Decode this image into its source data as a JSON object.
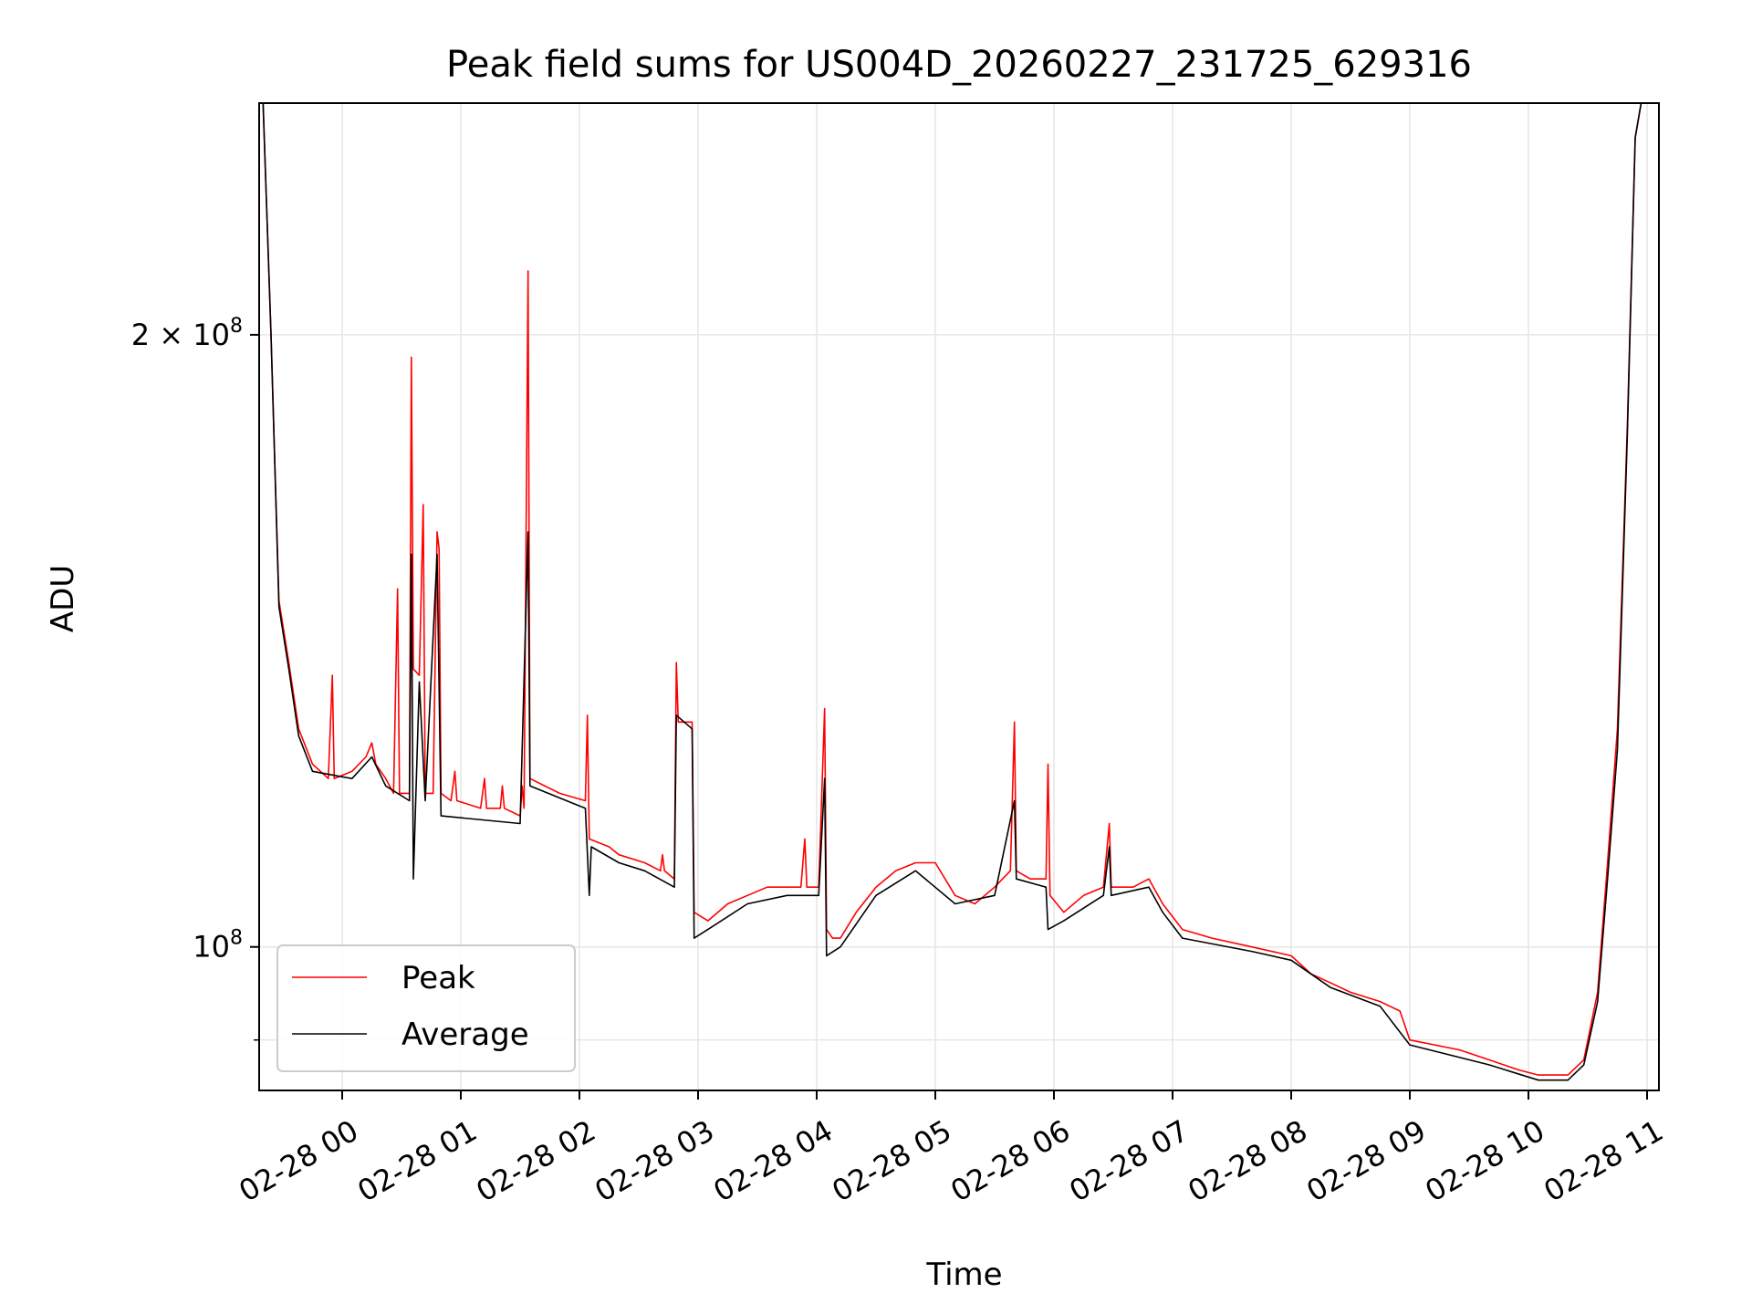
{
  "chart_data": {
    "type": "line",
    "title": "Peak field sums for US004D_20260227_231725_629316",
    "xlabel": "Time",
    "ylabel": "ADU",
    "yscale": "log",
    "grid": true,
    "legend_position": "lower-left",
    "xlim": [
      "2026-02-27T23:18",
      "2026-02-28T11:06"
    ],
    "ylim": [
      85000000,
      260000000
    ],
    "x_ticks": [
      {
        "value": "2026-02-28T00:00",
        "label": "02-28 00"
      },
      {
        "value": "2026-02-28T01:00",
        "label": "02-28 01"
      },
      {
        "value": "2026-02-28T02:00",
        "label": "02-28 02"
      },
      {
        "value": "2026-02-28T03:00",
        "label": "02-28 03"
      },
      {
        "value": "2026-02-28T04:00",
        "label": "02-28 04"
      },
      {
        "value": "2026-02-28T05:00",
        "label": "02-28 05"
      },
      {
        "value": "2026-02-28T06:00",
        "label": "02-28 06"
      },
      {
        "value": "2026-02-28T07:00",
        "label": "02-28 07"
      },
      {
        "value": "2026-02-28T08:00",
        "label": "02-28 08"
      },
      {
        "value": "2026-02-28T09:00",
        "label": "02-28 09"
      },
      {
        "value": "2026-02-28T10:00",
        "label": "02-28 10"
      },
      {
        "value": "2026-02-28T11:00",
        "label": "02-28 11"
      }
    ],
    "y_major_ticks": [
      {
        "value": 100000000,
        "mantissa": "",
        "base": "10",
        "exponent": "8"
      },
      {
        "value": 200000000,
        "mantissa": "2 × ",
        "base": "10",
        "exponent": "8"
      }
    ],
    "y_minor_ticks": [
      90000000
    ],
    "series": [
      {
        "name": "Peak",
        "color": "#ff0000",
        "points": [
          [
            "2026-02-27T23:20",
            260000000
          ],
          [
            "2026-02-27T23:24",
            200000000
          ],
          [
            "2026-02-27T23:28",
            148000000
          ],
          [
            "2026-02-27T23:33",
            138000000
          ],
          [
            "2026-02-27T23:38",
            128000000
          ],
          [
            "2026-02-27T23:45",
            123000000
          ],
          [
            "2026-02-27T23:53",
            121000000
          ],
          [
            "2026-02-27T23:55",
            136000000
          ],
          [
            "2026-02-27T23:56",
            121000000
          ],
          [
            "2026-02-28T00:05",
            122000000
          ],
          [
            "2026-02-28T00:12",
            124000000
          ],
          [
            "2026-02-28T00:15",
            126000000
          ],
          [
            "2026-02-28T00:17",
            123000000
          ],
          [
            "2026-02-28T00:22",
            121000000
          ],
          [
            "2026-02-28T00:26",
            119000000
          ],
          [
            "2026-02-28T00:28",
            150000000
          ],
          [
            "2026-02-28T00:29",
            119000000
          ],
          [
            "2026-02-28T00:34",
            119000000
          ],
          [
            "2026-02-28T00:35",
            195000000
          ],
          [
            "2026-02-28T00:36",
            137000000
          ],
          [
            "2026-02-28T00:39",
            136000000
          ],
          [
            "2026-02-28T00:41",
            165000000
          ],
          [
            "2026-02-28T00:42",
            119000000
          ],
          [
            "2026-02-28T00:46",
            119000000
          ],
          [
            "2026-02-28T00:48",
            160000000
          ],
          [
            "2026-02-28T00:49",
            157000000
          ],
          [
            "2026-02-28T00:50",
            119000000
          ],
          [
            "2026-02-28T00:55",
            118000000
          ],
          [
            "2026-02-28T00:57",
            122000000
          ],
          [
            "2026-02-28T00:58",
            118000000
          ],
          [
            "2026-02-28T01:10",
            117000000
          ],
          [
            "2026-02-28T01:12",
            121000000
          ],
          [
            "2026-02-28T01:13",
            117000000
          ],
          [
            "2026-02-28T01:20",
            117000000
          ],
          [
            "2026-02-28T01:21",
            120000000
          ],
          [
            "2026-02-28T01:22",
            117000000
          ],
          [
            "2026-02-28T01:30",
            116000000
          ],
          [
            "2026-02-28T01:31",
            120000000
          ],
          [
            "2026-02-28T01:32",
            117000000
          ],
          [
            "2026-02-28T01:34",
            215000000
          ],
          [
            "2026-02-28T01:35",
            121000000
          ],
          [
            "2026-02-28T01:50",
            119000000
          ],
          [
            "2026-02-28T02:03",
            118000000
          ],
          [
            "2026-02-28T02:04",
            130000000
          ],
          [
            "2026-02-28T02:05",
            113000000
          ],
          [
            "2026-02-28T02:15",
            112000000
          ],
          [
            "2026-02-28T02:20",
            111000000
          ],
          [
            "2026-02-28T02:33",
            110000000
          ],
          [
            "2026-02-28T02:41",
            109000000
          ],
          [
            "2026-02-28T02:42",
            111000000
          ],
          [
            "2026-02-28T02:43",
            109000000
          ],
          [
            "2026-02-28T02:48",
            108000000
          ],
          [
            "2026-02-28T02:49",
            138000000
          ],
          [
            "2026-02-28T02:50",
            129000000
          ],
          [
            "2026-02-28T02:57",
            129000000
          ],
          [
            "2026-02-28T02:58",
            104000000
          ],
          [
            "2026-02-28T03:05",
            103000000
          ],
          [
            "2026-02-28T03:15",
            105000000
          ],
          [
            "2026-02-28T03:25",
            106000000
          ],
          [
            "2026-02-28T03:35",
            107000000
          ],
          [
            "2026-02-28T03:45",
            107000000
          ],
          [
            "2026-02-28T03:52",
            107000000
          ],
          [
            "2026-02-28T03:54",
            113000000
          ],
          [
            "2026-02-28T03:55",
            107000000
          ],
          [
            "2026-02-28T04:01",
            107000000
          ],
          [
            "2026-02-28T04:04",
            131000000
          ],
          [
            "2026-02-28T04:05",
            102000000
          ],
          [
            "2026-02-28T04:08",
            101000000
          ],
          [
            "2026-02-28T04:12",
            101000000
          ],
          [
            "2026-02-28T04:20",
            104000000
          ],
          [
            "2026-02-28T04:30",
            107000000
          ],
          [
            "2026-02-28T04:40",
            109000000
          ],
          [
            "2026-02-28T04:50",
            110000000
          ],
          [
            "2026-02-28T05:00",
            110000000
          ],
          [
            "2026-02-28T05:10",
            106000000
          ],
          [
            "2026-02-28T05:20",
            105000000
          ],
          [
            "2026-02-28T05:30",
            107000000
          ],
          [
            "2026-02-28T05:38",
            109000000
          ],
          [
            "2026-02-28T05:40",
            129000000
          ],
          [
            "2026-02-28T05:41",
            109000000
          ],
          [
            "2026-02-28T05:48",
            108000000
          ],
          [
            "2026-02-28T05:56",
            108000000
          ],
          [
            "2026-02-28T05:57",
            123000000
          ],
          [
            "2026-02-28T05:58",
            106000000
          ],
          [
            "2026-02-28T06:05",
            104000000
          ],
          [
            "2026-02-28T06:15",
            106000000
          ],
          [
            "2026-02-28T06:25",
            107000000
          ],
          [
            "2026-02-28T06:28",
            115000000
          ],
          [
            "2026-02-28T06:29",
            107000000
          ],
          [
            "2026-02-28T06:40",
            107000000
          ],
          [
            "2026-02-28T06:48",
            108000000
          ],
          [
            "2026-02-28T06:55",
            105000000
          ],
          [
            "2026-02-28T07:05",
            102000000
          ],
          [
            "2026-02-28T07:20",
            101000000
          ],
          [
            "2026-02-28T07:40",
            100000000
          ],
          [
            "2026-02-28T08:00",
            99000000
          ],
          [
            "2026-02-28T08:10",
            97000000
          ],
          [
            "2026-02-28T08:20",
            96000000
          ],
          [
            "2026-02-28T08:30",
            95000000
          ],
          [
            "2026-02-28T08:45",
            94000000
          ],
          [
            "2026-02-28T08:55",
            93000000
          ],
          [
            "2026-02-28T09:00",
            90000000
          ],
          [
            "2026-02-28T09:25",
            89000000
          ],
          [
            "2026-02-28T09:40",
            88000000
          ],
          [
            "2026-02-28T09:55",
            87000000
          ],
          [
            "2026-02-28T10:05",
            86500000
          ],
          [
            "2026-02-28T10:20",
            86500000
          ],
          [
            "2026-02-28T10:28",
            88000000
          ],
          [
            "2026-02-28T10:35",
            95000000
          ],
          [
            "2026-02-28T10:40",
            110000000
          ],
          [
            "2026-02-28T10:45",
            128000000
          ],
          [
            "2026-02-28T10:50",
            180000000
          ],
          [
            "2026-02-28T10:54",
            250000000
          ],
          [
            "2026-02-28T10:57",
            260000000
          ]
        ]
      },
      {
        "name": "Average",
        "color": "#000000",
        "points": [
          [
            "2026-02-27T23:20",
            260000000
          ],
          [
            "2026-02-27T23:24",
            200000000
          ],
          [
            "2026-02-27T23:28",
            147000000
          ],
          [
            "2026-02-27T23:33",
            137000000
          ],
          [
            "2026-02-27T23:38",
            127000000
          ],
          [
            "2026-02-27T23:45",
            122000000
          ],
          [
            "2026-02-28T00:05",
            121000000
          ],
          [
            "2026-02-28T00:15",
            124000000
          ],
          [
            "2026-02-28T00:22",
            120000000
          ],
          [
            "2026-02-28T00:34",
            118000000
          ],
          [
            "2026-02-28T00:35",
            156000000
          ],
          [
            "2026-02-28T00:36",
            108000000
          ],
          [
            "2026-02-28T00:39",
            135000000
          ],
          [
            "2026-02-28T00:42",
            118000000
          ],
          [
            "2026-02-28T00:48",
            156000000
          ],
          [
            "2026-02-28T00:50",
            116000000
          ],
          [
            "2026-02-28T01:30",
            115000000
          ],
          [
            "2026-02-28T01:34",
            160000000
          ],
          [
            "2026-02-28T01:35",
            120000000
          ],
          [
            "2026-02-28T02:03",
            117000000
          ],
          [
            "2026-02-28T02:05",
            106000000
          ],
          [
            "2026-02-28T02:06",
            112000000
          ],
          [
            "2026-02-28T02:20",
            110000000
          ],
          [
            "2026-02-28T02:33",
            109000000
          ],
          [
            "2026-02-28T02:48",
            107000000
          ],
          [
            "2026-02-28T02:49",
            130000000
          ],
          [
            "2026-02-28T02:57",
            128000000
          ],
          [
            "2026-02-28T02:58",
            101000000
          ],
          [
            "2026-02-28T03:05",
            102000000
          ],
          [
            "2026-02-28T03:25",
            105000000
          ],
          [
            "2026-02-28T03:45",
            106000000
          ],
          [
            "2026-02-28T03:54",
            106000000
          ],
          [
            "2026-02-28T04:01",
            106000000
          ],
          [
            "2026-02-28T04:04",
            121000000
          ],
          [
            "2026-02-28T04:05",
            99000000
          ],
          [
            "2026-02-28T04:12",
            100000000
          ],
          [
            "2026-02-28T04:30",
            106000000
          ],
          [
            "2026-02-28T04:50",
            109000000
          ],
          [
            "2026-02-28T05:10",
            105000000
          ],
          [
            "2026-02-28T05:30",
            106000000
          ],
          [
            "2026-02-28T05:40",
            118000000
          ],
          [
            "2026-02-28T05:41",
            108000000
          ],
          [
            "2026-02-28T05:56",
            107000000
          ],
          [
            "2026-02-28T05:57",
            102000000
          ],
          [
            "2026-02-28T06:05",
            103000000
          ],
          [
            "2026-02-28T06:25",
            106000000
          ],
          [
            "2026-02-28T06:28",
            112000000
          ],
          [
            "2026-02-28T06:29",
            106000000
          ],
          [
            "2026-02-28T06:48",
            107000000
          ],
          [
            "2026-02-28T06:55",
            104000000
          ],
          [
            "2026-02-28T07:05",
            101000000
          ],
          [
            "2026-02-28T07:40",
            99500000
          ],
          [
            "2026-02-28T08:00",
            98500000
          ],
          [
            "2026-02-28T08:20",
            95500000
          ],
          [
            "2026-02-28T08:45",
            93500000
          ],
          [
            "2026-02-28T09:00",
            89500000
          ],
          [
            "2026-02-28T09:40",
            87500000
          ],
          [
            "2026-02-28T10:05",
            86000000
          ],
          [
            "2026-02-28T10:20",
            86000000
          ],
          [
            "2026-02-28T10:28",
            87500000
          ],
          [
            "2026-02-28T10:35",
            94000000
          ],
          [
            "2026-02-28T10:40",
            108000000
          ],
          [
            "2026-02-28T10:45",
            125000000
          ],
          [
            "2026-02-28T10:50",
            178000000
          ],
          [
            "2026-02-28T10:54",
            250000000
          ],
          [
            "2026-02-28T10:57",
            260000000
          ]
        ]
      }
    ]
  }
}
